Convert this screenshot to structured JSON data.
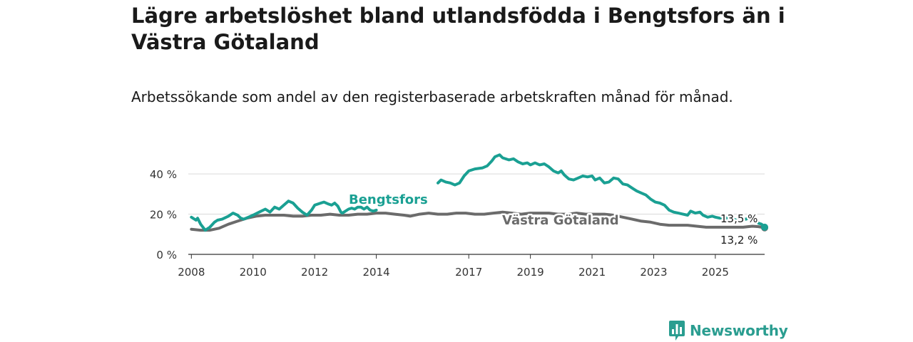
{
  "title": "Lägre arbetslöshet bland utlandsfödda i Bengtsfors än i Västra Götaland",
  "subtitle": "Arbetssökande som andel av den registerbaserade arbetskraften månad för månad.",
  "brand": {
    "name": "Newsworthy",
    "icon": "bar-chart-icon"
  },
  "colors": {
    "bengtsfors": "#1aa093",
    "vastra_gotaland": "#6b6b6b",
    "brand": "#2a9d90"
  },
  "chart_data": {
    "type": "line",
    "title": "Lägre arbetslöshet bland utlandsfödda i Bengtsfors än i Västra Götaland",
    "xlabel": "",
    "ylabel": "",
    "xlim": [
      2007.9,
      2026.6
    ],
    "ylim": [
      0,
      45
    ],
    "x_ticks": [
      2008,
      2010,
      2012,
      2014,
      2017,
      2019,
      2021,
      2023,
      2025
    ],
    "x_tick_labels": [
      "2008",
      "2010",
      "2012",
      "2014",
      "2017",
      "2019",
      "2021",
      "2023",
      "2025"
    ],
    "y_ticks": [
      0,
      20,
      40
    ],
    "y_tick_labels": [
      "0 %",
      "20 %",
      "40 %"
    ],
    "grid": true,
    "series": [
      {
        "name": "Bengtsfors",
        "label": "Bengtsfors",
        "color": "#1aa093",
        "end_label": "13,5 %",
        "points": [
          [
            2008.0,
            18.5
          ],
          [
            2008.15,
            17.0
          ],
          [
            2008.2,
            18.0
          ],
          [
            2008.3,
            15.0
          ],
          [
            2008.45,
            12.0
          ],
          [
            2008.6,
            13.5
          ],
          [
            2008.75,
            16.0
          ],
          [
            2008.85,
            17.0
          ],
          [
            2009.0,
            17.5
          ],
          [
            2009.2,
            19.0
          ],
          [
            2009.35,
            20.5
          ],
          [
            2009.5,
            19.5
          ],
          [
            2009.6,
            18.0
          ],
          [
            2009.7,
            17.5
          ],
          [
            2009.85,
            18.5
          ],
          [
            2010.0,
            19.5
          ],
          [
            2010.2,
            21.0
          ],
          [
            2010.4,
            22.5
          ],
          [
            2010.55,
            21.0
          ],
          [
            2010.7,
            23.5
          ],
          [
            2010.85,
            22.5
          ],
          [
            2011.0,
            24.5
          ],
          [
            2011.15,
            26.5
          ],
          [
            2011.3,
            25.5
          ],
          [
            2011.45,
            23.0
          ],
          [
            2011.6,
            21.0
          ],
          [
            2011.75,
            19.5
          ],
          [
            2011.9,
            22.0
          ],
          [
            2012.0,
            24.5
          ],
          [
            2012.2,
            25.5
          ],
          [
            2012.3,
            26.0
          ],
          [
            2012.45,
            25.0
          ],
          [
            2012.55,
            24.5
          ],
          [
            2012.65,
            25.5
          ],
          [
            2012.75,
            24.0
          ],
          [
            2012.85,
            21.0
          ],
          [
            2012.9,
            20.5
          ],
          [
            2012.95,
            21.0
          ],
          [
            2013.1,
            22.5
          ],
          [
            2013.2,
            23.0
          ],
          [
            2013.3,
            22.5
          ],
          [
            2013.4,
            23.5
          ],
          [
            2013.5,
            23.5
          ],
          [
            2013.6,
            22.5
          ],
          [
            2013.7,
            23.5
          ],
          [
            2013.8,
            22.0
          ],
          [
            2013.9,
            21.5
          ],
          [
            2014.0,
            22.0
          ],
          null,
          [
            2016.0,
            35.5
          ],
          [
            2016.1,
            37.0
          ],
          [
            2016.25,
            36.0
          ],
          [
            2016.4,
            35.5
          ],
          [
            2016.55,
            34.5
          ],
          [
            2016.7,
            35.5
          ],
          [
            2016.85,
            39.0
          ],
          [
            2017.0,
            41.5
          ],
          [
            2017.2,
            42.5
          ],
          [
            2017.45,
            43.0
          ],
          [
            2017.6,
            44.0
          ],
          [
            2017.75,
            46.5
          ],
          [
            2017.85,
            48.5
          ],
          [
            2018.0,
            49.5
          ],
          [
            2018.1,
            48.0
          ],
          [
            2018.3,
            47.0
          ],
          [
            2018.45,
            47.5
          ],
          [
            2018.6,
            46.0
          ],
          [
            2018.75,
            45.0
          ],
          [
            2018.9,
            45.5
          ],
          [
            2019.0,
            44.5
          ],
          [
            2019.15,
            45.5
          ],
          [
            2019.3,
            44.5
          ],
          [
            2019.45,
            45.0
          ],
          [
            2019.6,
            43.5
          ],
          [
            2019.75,
            41.5
          ],
          [
            2019.9,
            40.5
          ],
          [
            2020.0,
            41.5
          ],
          [
            2020.1,
            39.5
          ],
          [
            2020.25,
            37.5
          ],
          [
            2020.4,
            37.0
          ],
          [
            2020.55,
            38.0
          ],
          [
            2020.7,
            39.0
          ],
          [
            2020.85,
            38.5
          ],
          [
            2021.0,
            39.0
          ],
          [
            2021.1,
            37.0
          ],
          [
            2021.25,
            38.0
          ],
          [
            2021.4,
            35.5
          ],
          [
            2021.55,
            36.0
          ],
          [
            2021.7,
            38.0
          ],
          [
            2021.85,
            37.5
          ],
          [
            2022.0,
            35.0
          ],
          [
            2022.15,
            34.5
          ],
          [
            2022.3,
            33.0
          ],
          [
            2022.45,
            31.5
          ],
          [
            2022.6,
            30.5
          ],
          [
            2022.75,
            29.5
          ],
          [
            2022.9,
            27.5
          ],
          [
            2023.05,
            26.0
          ],
          [
            2023.2,
            25.5
          ],
          [
            2023.35,
            24.5
          ],
          [
            2023.5,
            22.0
          ],
          [
            2023.65,
            21.0
          ],
          [
            2023.8,
            20.5
          ],
          [
            2023.95,
            20.0
          ],
          [
            2024.1,
            19.5
          ],
          [
            2024.2,
            21.5
          ],
          [
            2024.35,
            20.5
          ],
          [
            2024.5,
            21.0
          ],
          [
            2024.6,
            19.5
          ],
          [
            2024.75,
            18.5
          ],
          [
            2024.9,
            19.0
          ],
          [
            2025.0,
            18.5
          ],
          [
            2025.15,
            18.0
          ],
          [
            2025.3,
            18.5
          ],
          [
            2025.45,
            17.5
          ],
          [
            2025.6,
            17.5
          ],
          [
            2025.75,
            16.5
          ],
          [
            2025.85,
            17.5
          ],
          [
            2026.0,
            17.5
          ],
          [
            2026.1,
            18.5
          ],
          [
            2026.2,
            19.0
          ],
          [
            2026.3,
            17.0
          ],
          [
            2026.4,
            15.5
          ],
          [
            2026.5,
            15.0
          ],
          [
            2026.6,
            13.5
          ]
        ]
      },
      {
        "name": "Västra Götaland",
        "label": "Västra Götaland",
        "color": "#6b6b6b",
        "end_label": "13,2 %",
        "points": [
          [
            2008.0,
            12.5
          ],
          [
            2008.3,
            12.0
          ],
          [
            2008.6,
            12.0
          ],
          [
            2008.9,
            13.0
          ],
          [
            2009.2,
            15.0
          ],
          [
            2009.5,
            16.5
          ],
          [
            2009.8,
            18.0
          ],
          [
            2010.1,
            19.0
          ],
          [
            2010.4,
            19.5
          ],
          [
            2010.7,
            19.5
          ],
          [
            2011.0,
            19.5
          ],
          [
            2011.3,
            19.0
          ],
          [
            2011.6,
            19.0
          ],
          [
            2011.9,
            19.5
          ],
          [
            2012.2,
            19.5
          ],
          [
            2012.5,
            20.0
          ],
          [
            2012.8,
            19.5
          ],
          [
            2013.1,
            19.5
          ],
          [
            2013.4,
            20.0
          ],
          [
            2013.7,
            20.0
          ],
          [
            2014.0,
            20.5
          ],
          [
            2014.3,
            20.5
          ],
          [
            2014.6,
            20.0
          ],
          [
            2014.9,
            19.5
          ],
          [
            2015.1,
            19.0
          ],
          [
            2015.4,
            20.0
          ],
          [
            2015.7,
            20.5
          ],
          [
            2016.0,
            20.0
          ],
          [
            2016.3,
            20.0
          ],
          [
            2016.6,
            20.5
          ],
          [
            2016.9,
            20.5
          ],
          [
            2017.2,
            20.0
          ],
          [
            2017.5,
            20.0
          ],
          [
            2017.8,
            20.5
          ],
          [
            2018.1,
            21.0
          ],
          [
            2018.4,
            20.5
          ],
          [
            2018.7,
            20.0
          ],
          [
            2019.0,
            20.5
          ],
          [
            2019.3,
            20.5
          ],
          [
            2019.6,
            20.5
          ],
          [
            2019.9,
            20.0
          ],
          [
            2020.2,
            20.0
          ],
          [
            2020.5,
            20.5
          ],
          [
            2020.8,
            20.0
          ],
          [
            2021.1,
            20.0
          ],
          [
            2021.4,
            20.0
          ],
          [
            2021.7,
            19.5
          ],
          [
            2022.0,
            18.5
          ],
          [
            2022.3,
            17.5
          ],
          [
            2022.6,
            16.5
          ],
          [
            2022.9,
            16.0
          ],
          [
            2023.2,
            15.0
          ],
          [
            2023.5,
            14.5
          ],
          [
            2023.8,
            14.5
          ],
          [
            2024.1,
            14.5
          ],
          [
            2024.4,
            14.0
          ],
          [
            2024.7,
            13.5
          ],
          [
            2025.0,
            13.5
          ],
          [
            2025.3,
            13.5
          ],
          [
            2025.6,
            13.5
          ],
          [
            2025.9,
            13.5
          ],
          [
            2026.2,
            14.0
          ],
          [
            2026.4,
            13.8
          ],
          [
            2026.6,
            13.2
          ]
        ]
      }
    ]
  }
}
